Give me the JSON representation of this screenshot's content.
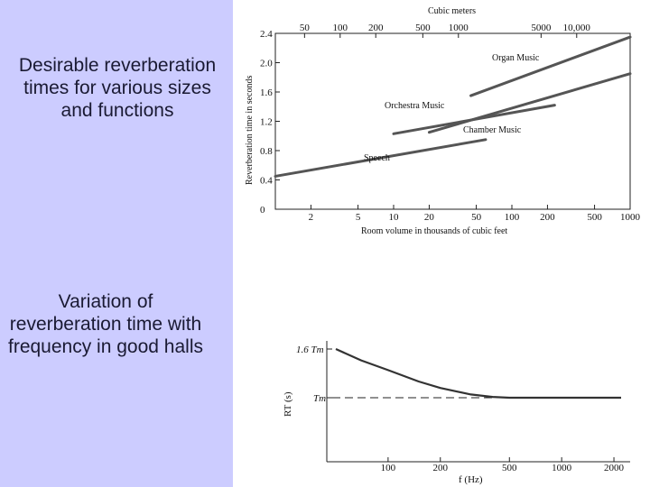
{
  "captions": {
    "chart1": "Desirable reverberation times for various sizes and functions",
    "chart2": "Variation of reverberation time with frequency in good halls"
  },
  "chart_data": [
    {
      "type": "line",
      "top_axis_label": "Cubic meters",
      "top_ticks": [
        "50",
        "100",
        "200",
        "500",
        "1000",
        "5000",
        "10,000"
      ],
      "xlabel": "Room volume in thousands of cubic feet",
      "ylabel": "Reverberation time in seconds",
      "xscale": "log",
      "xlim": [
        1,
        1000
      ],
      "ylim": [
        0,
        2.4
      ],
      "x_ticks": [
        "2",
        "5",
        "10",
        "20",
        "50",
        "100",
        "200",
        "500",
        "1000"
      ],
      "y_ticks": [
        "0",
        "0.4",
        "0.8",
        "1.2",
        "1.6",
        "2.0",
        "2.4"
      ],
      "series": [
        {
          "name": "Organ Music",
          "x": [
            45,
            1000
          ],
          "y": [
            1.55,
            2.35
          ]
        },
        {
          "name": "Orchestra Music",
          "x": [
            20,
            1000
          ],
          "y": [
            1.05,
            1.85
          ]
        },
        {
          "name": "Chamber Music",
          "x": [
            10,
            230
          ],
          "y": [
            1.03,
            1.42
          ]
        },
        {
          "name": "Speech",
          "x": [
            1,
            60
          ],
          "y": [
            0.45,
            0.95
          ]
        }
      ],
      "colors": {
        "lines": "#555555"
      }
    },
    {
      "type": "line",
      "xlabel": "f (Hz)",
      "ylabel": "RT (s)",
      "xscale": "log",
      "x_ticks": [
        "100",
        "200",
        "500",
        "1000",
        "2000"
      ],
      "y_ticks": [
        "1.6 Tm",
        "Tm"
      ],
      "series": [
        {
          "x": [
            50,
            70,
            100,
            150,
            200,
            300,
            400,
            500,
            700,
            1000,
            1500,
            2200
          ],
          "y": [
            1.6,
            1.46,
            1.34,
            1.2,
            1.12,
            1.04,
            1.01,
            1.0,
            1.0,
            1.0,
            1.0,
            1.0
          ]
        }
      ],
      "reference_line": {
        "label": "Tm",
        "y": 1.0
      },
      "colors": {
        "lines": "#333333"
      }
    }
  ]
}
